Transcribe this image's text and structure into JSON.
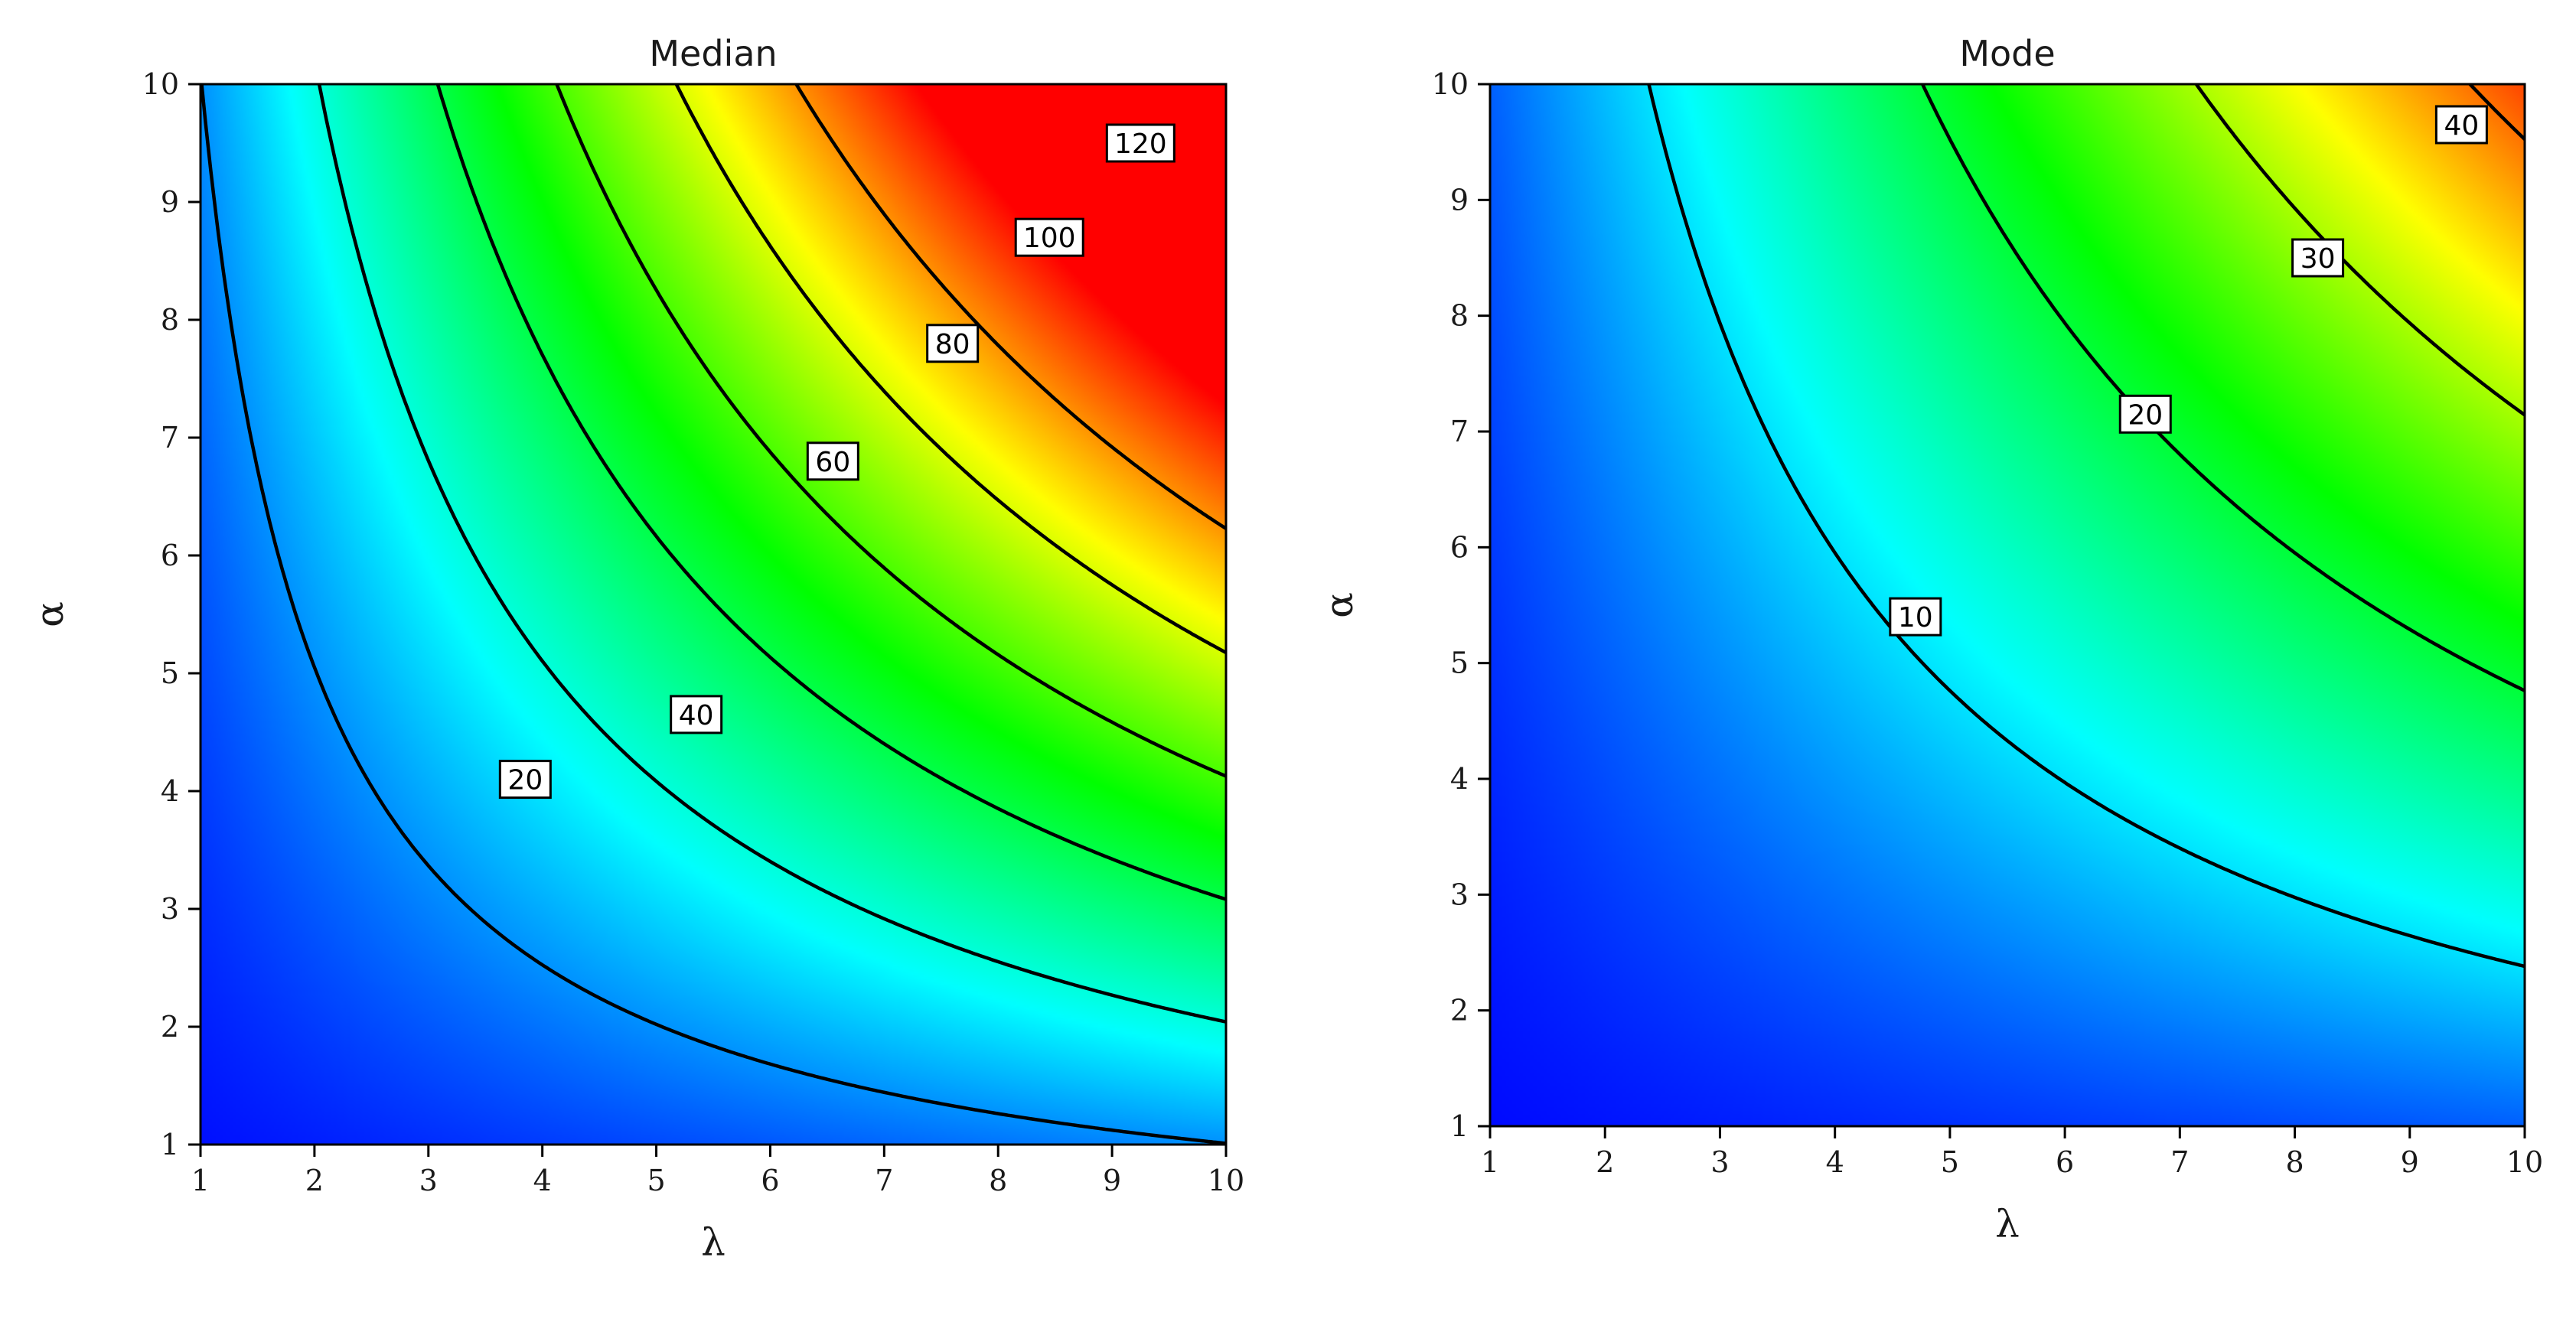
{
  "chart_data": [
    {
      "type": "heatmap",
      "title": "Median",
      "xlabel": "λ",
      "ylabel": "α",
      "xlim": [
        1,
        10
      ],
      "ylim": [
        1,
        10
      ],
      "xticks": [
        1,
        2,
        3,
        4,
        5,
        6,
        7,
        8,
        9,
        10
      ],
      "yticks": [
        1,
        2,
        3,
        4,
        5,
        6,
        7,
        8,
        9,
        10
      ],
      "colorscale": [
        "#0000ff",
        "#00ffff",
        "#00ff00",
        "#ffff00",
        "#ff0000"
      ],
      "color_range": [
        0,
        140
      ],
      "contour_levels": [
        20,
        40,
        60,
        80,
        100,
        120
      ],
      "contour_labels": [
        {
          "text": "20",
          "x": 3.85,
          "y": 4.1
        },
        {
          "text": "40",
          "x": 5.35,
          "y": 4.65
        },
        {
          "text": "60",
          "x": 6.55,
          "y": 6.8
        },
        {
          "text": "80",
          "x": 7.6,
          "y": 7.8
        },
        {
          "text": "100",
          "x": 8.45,
          "y": 8.7
        },
        {
          "text": "120",
          "x": 9.25,
          "y": 9.5
        }
      ]
    },
    {
      "type": "heatmap",
      "title": "Mode",
      "xlabel": "λ",
      "ylabel": "α",
      "xlim": [
        1,
        10
      ],
      "ylim": [
        1,
        10
      ],
      "xticks": [
        1,
        2,
        3,
        4,
        5,
        6,
        7,
        8,
        9,
        10
      ],
      "yticks": [
        1,
        2,
        3,
        4,
        5,
        6,
        7,
        8,
        9,
        10
      ],
      "colorscale": [
        "#0000ff",
        "#00ffff",
        "#00ff00",
        "#ffff00",
        "#ff0000"
      ],
      "color_range": [
        0,
        45
      ],
      "contour_levels": [
        10,
        20,
        30,
        40
      ],
      "contour_labels": [
        {
          "text": "10",
          "x": 4.7,
          "y": 5.4
        },
        {
          "text": "20",
          "x": 6.7,
          "y": 7.15
        },
        {
          "text": "30",
          "x": 8.2,
          "y": 8.5
        },
        {
          "text": "40",
          "x": 9.45,
          "y": 9.65
        }
      ]
    }
  ]
}
